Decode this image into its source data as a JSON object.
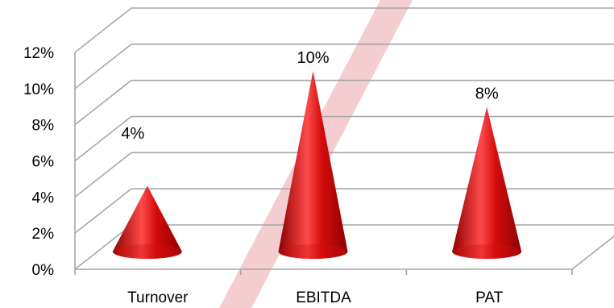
{
  "chart_data": {
    "type": "bar",
    "shape": "cone-3d",
    "categories": [
      "Turnover",
      "EBITDA",
      "PAT"
    ],
    "values": [
      4,
      10,
      8
    ],
    "data_labels": [
      "4%",
      "10%",
      "8%"
    ],
    "ylim": [
      0,
      12
    ],
    "y_ticks": [
      "0%",
      "2%",
      "4%",
      "6%",
      "8%",
      "10%",
      "12%"
    ],
    "grid": true,
    "legend": "none",
    "title": "",
    "xlabel": "",
    "ylabel": "",
    "colors": {
      "cone_light": "#ff4a4a",
      "cone_mid": "#d40d0d",
      "cone_dark": "#8e0000",
      "grid": "#a6a6a6",
      "watermark": "#f2c4c8"
    }
  }
}
